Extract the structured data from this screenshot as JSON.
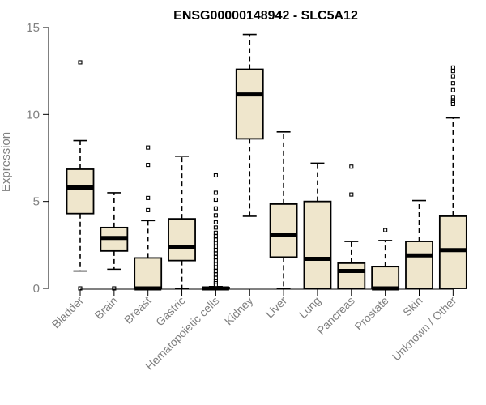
{
  "chart_data": {
    "type": "boxplot",
    "title": "ENSG00000148942 - SLC5A12",
    "ylabel": "Expression",
    "xlabel": "",
    "ylim": [
      0,
      15
    ],
    "yticks": [
      0,
      5,
      10,
      15
    ],
    "box_fill": "#efe6cc",
    "categories": [
      "Bladder",
      "Brain",
      "Breast",
      "Gastric",
      "Hematopoietic cells",
      "Kidney",
      "Liver",
      "Lung",
      "Pancreas",
      "Prostate",
      "Skin",
      "Unknown / Other"
    ],
    "boxes": [
      {
        "name": "Bladder",
        "min": 1.0,
        "q1": 4.3,
        "median": 5.8,
        "q3": 6.85,
        "max": 8.5,
        "outliers": [
          13.0,
          0.0
        ]
      },
      {
        "name": "Brain",
        "min": 1.1,
        "q1": 2.15,
        "median": 2.9,
        "q3": 3.5,
        "max": 5.5,
        "outliers": [
          0.0
        ]
      },
      {
        "name": "Breast",
        "min": 0.0,
        "q1": 0.0,
        "median": 0.0,
        "q3": 1.75,
        "max": 3.9,
        "outliers": [
          8.1,
          7.1,
          5.2,
          4.5
        ]
      },
      {
        "name": "Gastric",
        "min": 0.0,
        "q1": 1.6,
        "median": 2.4,
        "q3": 4.0,
        "max": 7.6,
        "outliers": []
      },
      {
        "name": "Hematopoietic cells",
        "min": 0.0,
        "q1": 0.0,
        "median": 0.0,
        "q3": 0.05,
        "max": 0.1,
        "outliers": [
          6.5,
          5.5,
          5.1,
          4.6,
          4.2,
          3.8,
          3.5,
          3.2,
          3.0,
          2.8,
          2.6,
          2.4,
          2.2,
          2.0,
          1.8,
          1.6,
          1.4,
          1.2,
          1.0,
          0.8,
          0.6,
          0.4,
          0.3,
          0.2
        ]
      },
      {
        "name": "Kidney",
        "min": 4.15,
        "q1": 8.6,
        "median": 11.15,
        "q3": 12.6,
        "max": 14.6,
        "outliers": []
      },
      {
        "name": "Liver",
        "min": 0.0,
        "q1": 1.8,
        "median": 3.05,
        "q3": 4.85,
        "max": 9.0,
        "outliers": []
      },
      {
        "name": "Lung",
        "min": 0.0,
        "q1": 0.0,
        "median": 1.7,
        "q3": 5.0,
        "max": 7.2,
        "outliers": []
      },
      {
        "name": "Pancreas",
        "min": 0.0,
        "q1": 0.0,
        "median": 1.0,
        "q3": 1.45,
        "max": 2.7,
        "outliers": [
          7.0,
          5.4
        ]
      },
      {
        "name": "Prostate",
        "min": 0.0,
        "q1": 0.0,
        "median": 0.0,
        "q3": 1.25,
        "max": 2.75,
        "outliers": [
          3.35
        ]
      },
      {
        "name": "Skin",
        "min": 0.0,
        "q1": 0.0,
        "median": 1.9,
        "q3": 2.7,
        "max": 5.05,
        "outliers": []
      },
      {
        "name": "Unknown / Other",
        "min": 0.0,
        "q1": 0.0,
        "median": 2.2,
        "q3": 4.15,
        "max": 9.8,
        "outliers": [
          12.7,
          12.5,
          12.2,
          11.8,
          11.4,
          11.0,
          10.8,
          10.7,
          10.6
        ]
      }
    ]
  }
}
